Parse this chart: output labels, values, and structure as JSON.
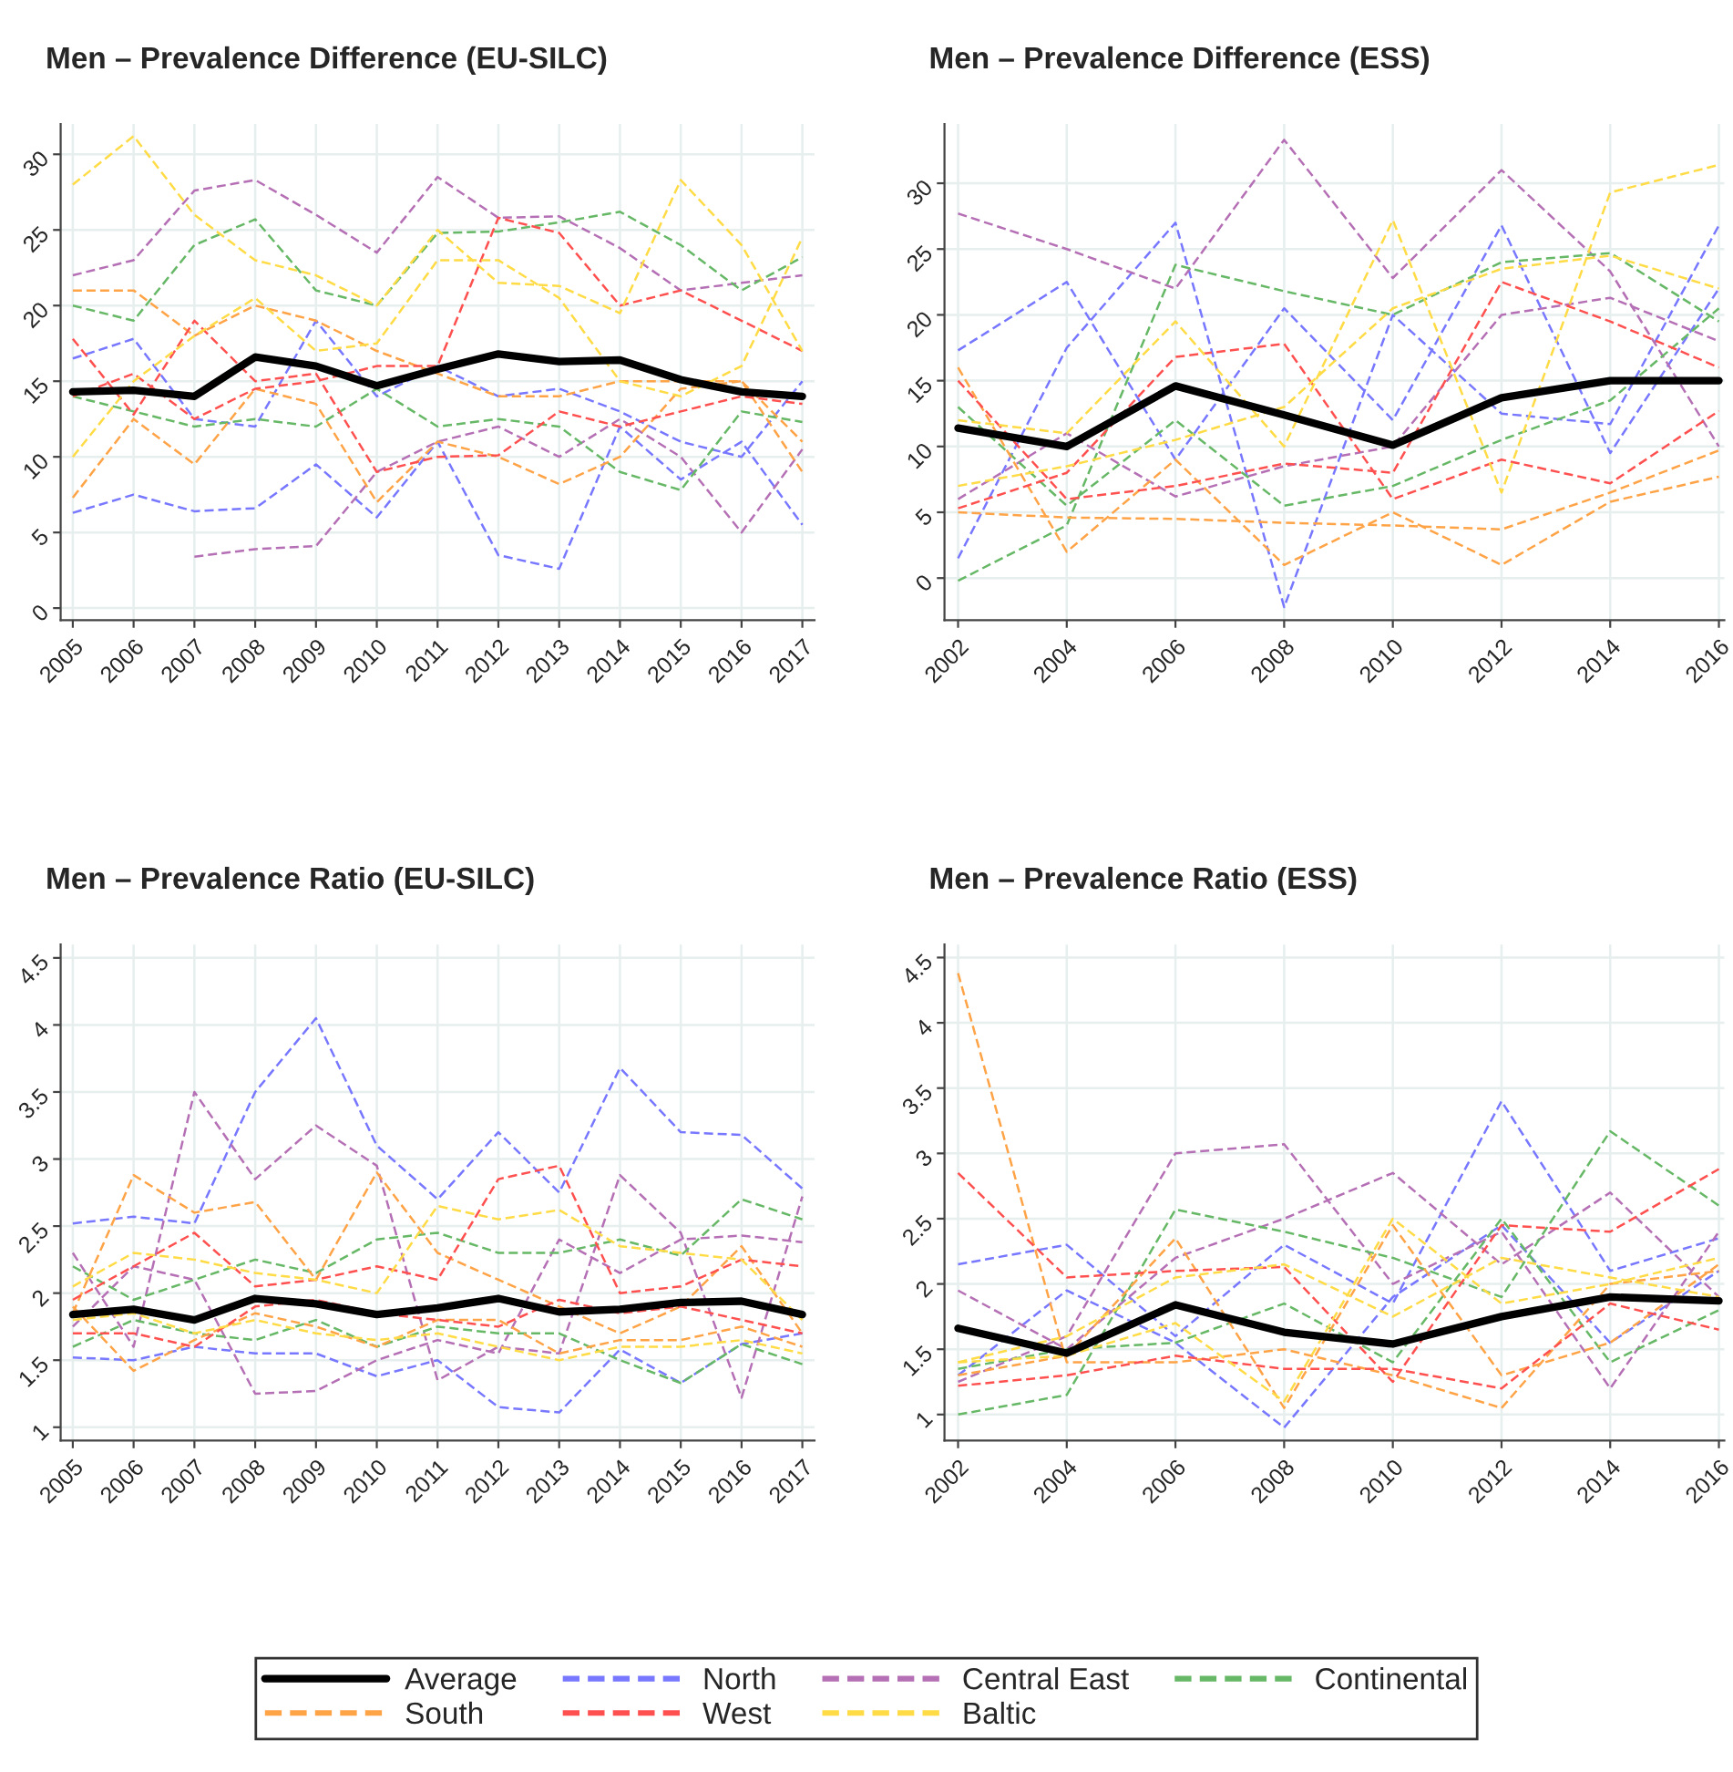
{
  "chart_data": [
    {
      "type": "line",
      "title": "Men – Prevalence Difference (EU-SILC)",
      "x": [
        2005,
        2006,
        2007,
        2008,
        2009,
        2010,
        2011,
        2012,
        2013,
        2014,
        2015,
        2016,
        2017
      ],
      "xlim": [
        2004.8,
        2017.2
      ],
      "xticks": [
        2005,
        2006,
        2007,
        2008,
        2009,
        2010,
        2011,
        2012,
        2013,
        2014,
        2015,
        2016,
        2017
      ],
      "ylim": [
        -0.8,
        32
      ],
      "yticks": [
        0,
        5,
        10,
        15,
        20,
        25,
        30
      ],
      "grid": true,
      "series": [
        {
          "color": "#000000",
          "line_style": "solid",
          "values": [
            14.3,
            14.4,
            14.0,
            16.6,
            16.0,
            14.7,
            15.8,
            16.8,
            16.3,
            16.4,
            15.1,
            14.3,
            14.0
          ]
        },
        {
          "color": "#7777ff",
          "line_style": "dashed",
          "values": [
            6.3,
            7.5,
            6.4,
            6.6,
            9.5,
            6.0,
            11,
            3.5,
            2.6,
            12,
            8.5,
            11,
            5.5
          ]
        },
        {
          "color": "#7777ff",
          "line_style": "dashed",
          "values": [
            16.5,
            17.8,
            12.5,
            12,
            19,
            14,
            16,
            14,
            14.5,
            13,
            11,
            10,
            15
          ]
        },
        {
          "color": "#b570b5",
          "line_style": "dashed",
          "values": [
            22,
            23,
            27.6,
            28.3,
            26,
            23.5,
            28.5,
            25.8,
            25.9,
            23.8,
            21,
            21.5,
            22
          ]
        },
        {
          "color": "#b570b5",
          "line_style": "dashed",
          "values": [
            null,
            null,
            3.4,
            3.9,
            4.1,
            9,
            11,
            12,
            10,
            12.5,
            10,
            5,
            10.5
          ]
        },
        {
          "color": "#66b866",
          "line_style": "dashed",
          "values": [
            20,
            19,
            24,
            25.7,
            21,
            20,
            24.8,
            24.9,
            25.5,
            26.2,
            24,
            21,
            23.2
          ]
        },
        {
          "color": "#66b866",
          "line_style": "dashed",
          "values": [
            14,
            13,
            12,
            12.5,
            12,
            14.5,
            12,
            12.5,
            12,
            9,
            7.8,
            13,
            12.3
          ]
        },
        {
          "color": "#ffa347",
          "line_style": "dashed",
          "values": [
            7.3,
            12.5,
            9.5,
            14.5,
            13.5,
            7,
            11,
            10,
            8.2,
            10,
            14.5,
            15,
            9
          ]
        },
        {
          "color": "#ffa347",
          "line_style": "dashed",
          "values": [
            21,
            21,
            18,
            20,
            19,
            17,
            15.5,
            14,
            14,
            15,
            15,
            15,
            11
          ]
        },
        {
          "color": "#ff5050",
          "line_style": "dashed",
          "values": [
            17.8,
            12.8,
            19,
            15,
            15.5,
            9,
            10,
            10.1,
            13,
            12,
            13,
            14,
            13.5
          ]
        },
        {
          "color": "#ff5050",
          "line_style": "dashed",
          "values": [
            14,
            15.5,
            12.5,
            14.5,
            15,
            16,
            16,
            25.8,
            24.8,
            20,
            21,
            19,
            17
          ]
        },
        {
          "color": "#ffdb45",
          "line_style": "dashed",
          "values": [
            28,
            31.2,
            26,
            23,
            22,
            20,
            25,
            21.5,
            21.3,
            19.5,
            28.3,
            24,
            17
          ]
        },
        {
          "color": "#ffdb45",
          "line_style": "dashed",
          "values": [
            10,
            15,
            18,
            20.5,
            17,
            17.5,
            23,
            23,
            20.5,
            15,
            14,
            16,
            24.5
          ]
        }
      ]
    },
    {
      "type": "line",
      "title": "Men – Prevalence Difference (ESS)",
      "x": [
        2002,
        2004,
        2006,
        2008,
        2010,
        2012,
        2014,
        2016
      ],
      "xlim": [
        2001.75,
        2016.1
      ],
      "xticks": [
        2002,
        2004,
        2006,
        2008,
        2010,
        2012,
        2014,
        2016
      ],
      "ylim": [
        -3.2,
        34.5
      ],
      "yticks": [
        0,
        5,
        10,
        15,
        20,
        25,
        30
      ],
      "grid": true,
      "series": [
        {
          "color": "#000000",
          "line_style": "solid",
          "values": [
            11.4,
            10.0,
            14.6,
            12.4,
            10.1,
            13.7,
            15.0,
            15.0
          ]
        },
        {
          "color": "#7777ff",
          "line_style": "dashed",
          "values": [
            17.3,
            22.5,
            9,
            20.5,
            12,
            26.8,
            9.5,
            22
          ]
        },
        {
          "color": "#7777ff",
          "line_style": "dashed",
          "values": [
            1.5,
            17.5,
            27,
            -2.2,
            20,
            12.5,
            11.7,
            26.8
          ]
        },
        {
          "color": "#b570b5",
          "line_style": "dashed",
          "values": [
            27.7,
            25,
            22,
            33.3,
            22.8,
            31,
            23.3,
            10
          ]
        },
        {
          "color": "#b570b5",
          "line_style": "dashed",
          "values": [
            6,
            11,
            6.2,
            8.5,
            10,
            20,
            21.3,
            18
          ]
        },
        {
          "color": "#66b866",
          "line_style": "dashed",
          "values": [
            -0.2,
            4,
            23.8,
            21.8,
            20,
            24,
            24.7,
            19.5
          ]
        },
        {
          "color": "#66b866",
          "line_style": "dashed",
          "values": [
            13,
            5.5,
            12,
            5.5,
            7,
            10.5,
            13.5,
            20.5
          ]
        },
        {
          "color": "#ffa347",
          "line_style": "dashed",
          "values": [
            5,
            4.6,
            4.5,
            4.2,
            4,
            3.7,
            6.5,
            9.7
          ]
        },
        {
          "color": "#ffa347",
          "line_style": "dashed",
          "values": [
            16,
            2,
            9,
            1,
            5,
            1,
            5.8,
            7.7
          ]
        },
        {
          "color": "#ff5050",
          "line_style": "dashed",
          "values": [
            5.3,
            8,
            16.8,
            17.8,
            6,
            9,
            7.2,
            12.7
          ]
        },
        {
          "color": "#ff5050",
          "line_style": "dashed",
          "values": [
            15,
            6,
            7,
            8.7,
            8,
            22.5,
            19.5,
            16
          ]
        },
        {
          "color": "#ffdb45",
          "line_style": "dashed",
          "values": [
            12,
            11,
            19.5,
            10,
            27.2,
            6.5,
            29.3,
            31.4
          ]
        },
        {
          "color": "#ffdb45",
          "line_style": "dashed",
          "values": [
            7,
            8.5,
            10.5,
            13,
            20.5,
            23.5,
            24.5,
            22
          ]
        }
      ]
    },
    {
      "type": "line",
      "title": "Men – Prevalence Ratio (EU-SILC)",
      "x": [
        2005,
        2006,
        2007,
        2008,
        2009,
        2010,
        2011,
        2012,
        2013,
        2014,
        2015,
        2016,
        2017
      ],
      "xlim": [
        2004.8,
        2017.2
      ],
      "xticks": [
        2005,
        2006,
        2007,
        2008,
        2009,
        2010,
        2011,
        2012,
        2013,
        2014,
        2015,
        2016,
        2017
      ],
      "ylim": [
        0.9,
        4.6
      ],
      "yticks": [
        1,
        1.5,
        2,
        2.5,
        3,
        3.5,
        4,
        4.5
      ],
      "grid": true,
      "series": [
        {
          "color": "#000000",
          "line_style": "solid",
          "values": [
            1.84,
            1.88,
            1.8,
            1.96,
            1.92,
            1.84,
            1.89,
            1.96,
            1.86,
            1.88,
            1.93,
            1.94,
            1.84
          ]
        },
        {
          "color": "#7777ff",
          "line_style": "dashed",
          "values": [
            2.52,
            2.57,
            2.52,
            3.5,
            4.05,
            3.1,
            2.7,
            3.2,
            2.75,
            3.68,
            3.2,
            3.18,
            2.78
          ]
        },
        {
          "color": "#7777ff",
          "line_style": "dashed",
          "values": [
            1.52,
            1.5,
            1.6,
            1.55,
            1.55,
            1.38,
            1.5,
            1.15,
            1.11,
            1.58,
            1.33,
            1.62,
            1.7
          ]
        },
        {
          "color": "#b570b5",
          "line_style": "dashed",
          "values": [
            2.3,
            1.6,
            3.5,
            2.85,
            3.25,
            2.95,
            1.35,
            1.6,
            1.55,
            2.88,
            2.45,
            1.22,
            2.72
          ]
        },
        {
          "color": "#b570b5",
          "line_style": "dashed",
          "values": [
            1.75,
            2.2,
            2.1,
            1.25,
            1.27,
            1.5,
            1.65,
            1.55,
            2.4,
            2.15,
            2.4,
            2.43,
            2.38
          ]
        },
        {
          "color": "#66b866",
          "line_style": "dashed",
          "values": [
            2.2,
            1.95,
            2.1,
            2.25,
            2.15,
            2.4,
            2.45,
            2.3,
            2.3,
            2.4,
            2.28,
            2.7,
            2.55
          ]
        },
        {
          "color": "#66b866",
          "line_style": "dashed",
          "values": [
            1.6,
            1.8,
            1.7,
            1.65,
            1.8,
            1.6,
            1.75,
            1.7,
            1.7,
            1.5,
            1.33,
            1.62,
            1.47
          ]
        },
        {
          "color": "#ffa347",
          "line_style": "dashed",
          "values": [
            1.85,
            2.88,
            2.6,
            2.68,
            2.1,
            2.9,
            2.3,
            2.1,
            1.9,
            1.7,
            1.9,
            2.35,
            1.7
          ]
        },
        {
          "color": "#ffa347",
          "line_style": "dashed",
          "values": [
            1.9,
            1.42,
            1.65,
            1.85,
            1.75,
            1.6,
            1.8,
            1.8,
            1.55,
            1.65,
            1.65,
            1.75,
            1.6
          ]
        },
        {
          "color": "#ff5050",
          "line_style": "dashed",
          "values": [
            1.95,
            2.2,
            2.45,
            2.05,
            2.1,
            2.2,
            2.1,
            2.85,
            2.95,
            2.0,
            2.05,
            2.25,
            2.2
          ]
        },
        {
          "color": "#ff5050",
          "line_style": "dashed",
          "values": [
            1.7,
            1.7,
            1.6,
            1.9,
            1.95,
            1.85,
            1.8,
            1.75,
            1.95,
            1.85,
            1.9,
            1.8,
            1.7
          ]
        },
        {
          "color": "#ffdb45",
          "line_style": "dashed",
          "values": [
            2.05,
            2.3,
            2.25,
            2.15,
            2.1,
            2.0,
            2.65,
            2.55,
            2.62,
            2.35,
            2.3,
            2.25,
            1.8
          ]
        },
        {
          "color": "#ffdb45",
          "line_style": "dashed",
          "values": [
            1.8,
            1.85,
            1.7,
            1.8,
            1.7,
            1.65,
            1.7,
            1.6,
            1.5,
            1.6,
            1.6,
            1.65,
            1.55
          ]
        }
      ]
    },
    {
      "type": "line",
      "title": "Men – Prevalence Ratio (ESS)",
      "x": [
        2002,
        2004,
        2006,
        2008,
        2010,
        2012,
        2014,
        2016
      ],
      "xlim": [
        2001.75,
        2016.1
      ],
      "xticks": [
        2002,
        2004,
        2006,
        2008,
        2010,
        2012,
        2014,
        2016
      ],
      "ylim": [
        0.8,
        4.6
      ],
      "yticks": [
        1,
        1.5,
        2,
        2.5,
        3,
        3.5,
        4,
        4.5
      ],
      "grid": true,
      "legend": "bottom",
      "series": [
        {
          "name": "Average",
          "color": "#000000",
          "line_style": "solid",
          "values": [
            1.66,
            1.47,
            1.84,
            1.63,
            1.54,
            1.75,
            1.9,
            1.87
          ]
        },
        {
          "name": "North",
          "color": "#7777ff",
          "line_style": "dashed",
          "values": [
            2.15,
            2.3,
            1.6,
            2.3,
            1.85,
            3.4,
            2.1,
            2.35
          ]
        },
        {
          "color": "#7777ff",
          "line_style": "dashed",
          "values": [
            1.3,
            1.95,
            1.55,
            0.9,
            1.9,
            2.45,
            1.55,
            2.1
          ]
        },
        {
          "name": "Central East",
          "color": "#b570b5",
          "line_style": "dashed",
          "values": [
            1.25,
            1.6,
            3.0,
            3.07,
            2.0,
            2.4,
            1.2,
            2.4
          ]
        },
        {
          "color": "#b570b5",
          "line_style": "dashed",
          "values": [
            1.95,
            1.5,
            2.2,
            2.5,
            2.85,
            2.15,
            2.7,
            1.9
          ]
        },
        {
          "name": "Continental",
          "color": "#66b866",
          "line_style": "dashed",
          "values": [
            1.0,
            1.15,
            2.57,
            2.4,
            2.2,
            1.9,
            3.17,
            2.6
          ]
        },
        {
          "color": "#66b866",
          "line_style": "dashed",
          "values": [
            1.35,
            1.5,
            1.55,
            1.85,
            1.4,
            2.5,
            1.4,
            1.8
          ]
        },
        {
          "name": "South",
          "color": "#ffa347",
          "line_style": "dashed",
          "values": [
            4.38,
            1.4,
            1.4,
            1.5,
            1.3,
            1.05,
            2.0,
            2.1
          ]
        },
        {
          "color": "#ffa347",
          "line_style": "dashed",
          "values": [
            1.3,
            1.45,
            2.35,
            1.05,
            2.45,
            1.3,
            1.55,
            2.15
          ]
        },
        {
          "name": "West",
          "color": "#ff5050",
          "line_style": "dashed",
          "values": [
            2.85,
            2.05,
            2.1,
            2.13,
            1.25,
            2.45,
            2.4,
            2.88
          ]
        },
        {
          "color": "#ff5050",
          "line_style": "dashed",
          "values": [
            1.22,
            1.3,
            1.45,
            1.35,
            1.35,
            1.2,
            1.85,
            1.65
          ]
        },
        {
          "name": "Baltic",
          "color": "#ffdb45",
          "line_style": "dashed",
          "values": [
            1.4,
            1.6,
            2.05,
            2.15,
            1.75,
            2.2,
            2.05,
            1.9
          ]
        },
        {
          "color": "#ffdb45",
          "line_style": "dashed",
          "values": [
            1.4,
            1.45,
            1.7,
            1.1,
            2.5,
            1.85,
            2.0,
            2.2
          ]
        }
      ]
    }
  ]
}
